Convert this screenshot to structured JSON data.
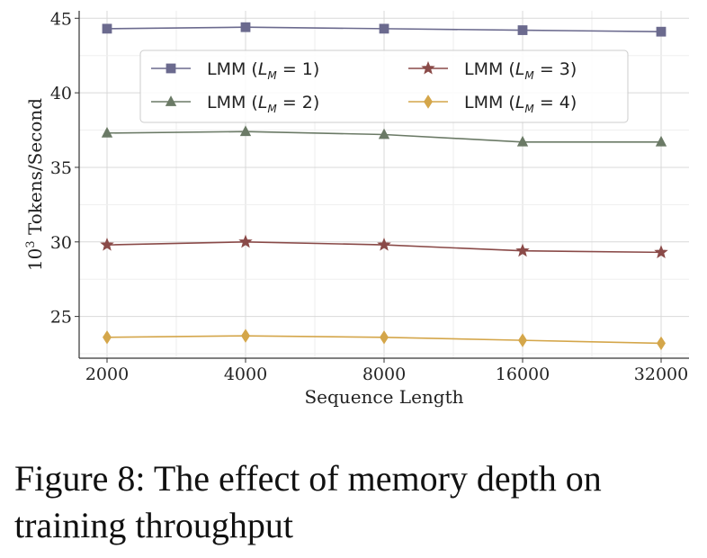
{
  "chart_data": {
    "type": "line",
    "categories": [
      "2000",
      "4000",
      "8000",
      "16000",
      "32000"
    ],
    "series": [
      {
        "name_prefix": "LMM (",
        "name_sub": "M",
        "name_suffix": " = 1)",
        "name": "LMM (L_M = 1)",
        "values": [
          44.3,
          44.4,
          44.3,
          44.2,
          44.1
        ],
        "color": "#6b6a8e",
        "marker": "square"
      },
      {
        "name_prefix": "LMM (",
        "name_sub": "M",
        "name_suffix": " = 2)",
        "name": "LMM (L_M = 2)",
        "values": [
          37.3,
          37.4,
          37.2,
          36.7,
          36.7
        ],
        "color": "#6b7a66",
        "marker": "triangle"
      },
      {
        "name_prefix": "LMM (",
        "name_sub": "M",
        "name_suffix": " = 3)",
        "name": "LMM (L_M = 3)",
        "values": [
          29.8,
          30.0,
          29.8,
          29.4,
          29.3
        ],
        "color": "#8a4a48",
        "marker": "star"
      },
      {
        "name_prefix": "LMM (",
        "name_sub": "M",
        "name_suffix": " = 4)",
        "name": "LMM (L_M = 4)",
        "values": [
          23.6,
          23.7,
          23.6,
          23.4,
          23.2
        ],
        "color": "#d4a64a",
        "marker": "diamond"
      }
    ],
    "xlabel": "Sequence Length",
    "ylabel_base": "10",
    "ylabel_exp": "3",
    "ylabel_rest": " Tokens/Second",
    "ylabel": "10^3 Tokens/Second",
    "ylim": [
      22.2,
      45.5
    ],
    "yticks": [
      "25",
      "30",
      "35",
      "40",
      "45"
    ],
    "grid": true,
    "legend_position": "top"
  },
  "caption": {
    "line1": "Figure 8: The effect of memory depth on",
    "line2": "training throughput"
  }
}
